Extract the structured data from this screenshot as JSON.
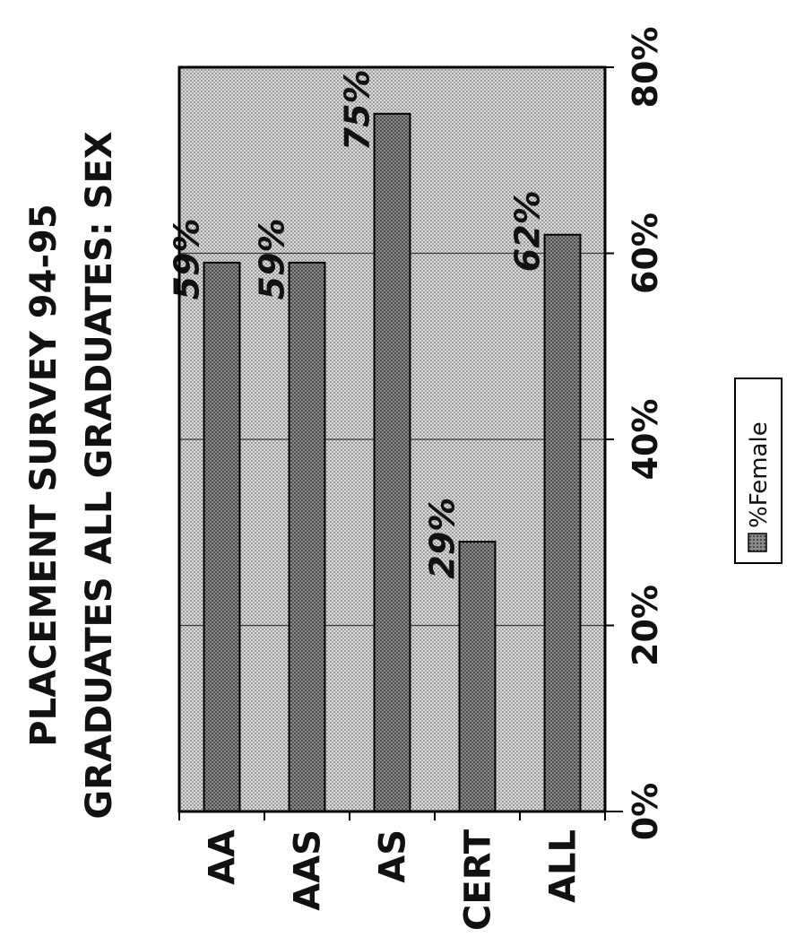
{
  "chart_data": {
    "type": "bar",
    "orientation": "horizontal",
    "title": "PLACEMENT SURVEY 94-95",
    "subtitle": "GRADUATES ALL GRADUATES: SEX",
    "categories": [
      "AA",
      "AAS",
      "AS",
      "CERT",
      "ALL"
    ],
    "series": [
      {
        "name": "%Female",
        "values": [
          59,
          59,
          75,
          29,
          62
        ],
        "labels": [
          "59%",
          "59%",
          "75%",
          "29%",
          "62%"
        ]
      }
    ],
    "xlim": [
      0,
      80
    ],
    "ticks": [
      0,
      20,
      40,
      60,
      80
    ],
    "tick_labels": [
      "0%",
      "20%",
      "40%",
      "60%",
      "80%"
    ],
    "grid": true,
    "legend": "bottom",
    "image_rotation": "rotated 90 degrees counter-clockwise",
    "colors": {
      "plot_background": "#bdbdbd",
      "bar_fill": "#6f6f6f",
      "gridline": "#333333",
      "text": "#111111"
    }
  }
}
